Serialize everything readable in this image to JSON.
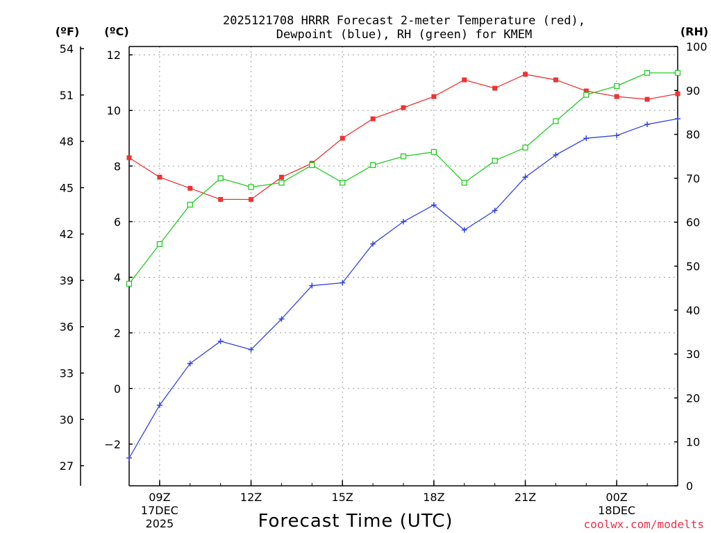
{
  "chart_data": {
    "type": "line",
    "title_lines": [
      "2025121708 HRRR Forecast 2-meter Temperature (red),",
      "Dewpoint (blue), RH (green) for KMEM"
    ],
    "xlabel": "Forecast Time (UTC)",
    "credit": "coolwx.com/modelts",
    "units": {
      "fahrenheit": "(ºF)",
      "celsius": "(ºC)",
      "rh": "(RH)"
    },
    "x_hours": [
      8,
      9,
      10,
      11,
      12,
      13,
      14,
      15,
      16,
      17,
      18,
      19,
      20,
      21,
      22,
      23,
      24,
      25,
      26
    ],
    "x_range": [
      8,
      26
    ],
    "x_ticks": [
      {
        "hour": 9,
        "lines": [
          "09Z",
          "17DEC",
          "2025"
        ]
      },
      {
        "hour": 12,
        "lines": [
          "12Z"
        ]
      },
      {
        "hour": 15,
        "lines": [
          "15Z"
        ]
      },
      {
        "hour": 18,
        "lines": [
          "18Z"
        ]
      },
      {
        "hour": 21,
        "lines": [
          "21Z"
        ]
      },
      {
        "hour": 24,
        "lines": [
          "00Z",
          "18DEC"
        ]
      }
    ],
    "x_grid_hours": [
      9,
      12,
      15,
      18,
      21,
      24
    ],
    "celsius_axis": {
      "range": [
        -3.5,
        12.3
      ],
      "ticks": [
        -2,
        0,
        2,
        4,
        6,
        8,
        10,
        12
      ],
      "tick_labels": [
        "−2",
        "0",
        "2",
        "4",
        "6",
        "8",
        "10",
        "12"
      ]
    },
    "fahrenheit_axis": {
      "ticks": [
        27,
        30,
        33,
        36,
        39,
        42,
        45,
        48,
        51,
        54
      ],
      "tick_labels": [
        "27",
        "30",
        "33",
        "36",
        "39",
        "42",
        "45",
        "48",
        "51",
        "54"
      ]
    },
    "rh_axis": {
      "range": [
        0,
        100
      ],
      "ticks": [
        0,
        10,
        20,
        30,
        40,
        50,
        60,
        70,
        80,
        90,
        100
      ],
      "tick_labels": [
        "0",
        "10",
        "20",
        "30",
        "40",
        "50",
        "60",
        "70",
        "80",
        "90",
        "100"
      ]
    },
    "series": [
      {
        "name": "Temperature",
        "axis": "celsius",
        "color": "#ee3333",
        "marker": "filled-square",
        "values": [
          8.3,
          7.6,
          7.2,
          6.8,
          6.8,
          7.6,
          8.1,
          9.0,
          9.7,
          10.1,
          10.5,
          11.1,
          10.8,
          11.3,
          11.1,
          10.7,
          10.5,
          10.4,
          10.6
        ]
      },
      {
        "name": "Dewpoint",
        "axis": "celsius",
        "color": "#3344dd",
        "marker": "plus",
        "values": [
          -2.5,
          -0.6,
          0.9,
          1.7,
          1.4,
          2.5,
          3.7,
          3.8,
          5.2,
          6.0,
          6.6,
          5.7,
          6.4,
          7.6,
          8.4,
          9.0,
          9.1,
          9.5,
          9.7
        ]
      },
      {
        "name": "Relative Humidity",
        "axis": "rh",
        "color": "#22cc22",
        "marker": "open-square",
        "values": [
          46,
          55,
          64,
          70,
          68,
          69,
          73,
          69,
          73,
          75,
          76,
          69,
          74,
          77,
          83,
          89,
          91,
          94,
          94
        ]
      }
    ]
  }
}
